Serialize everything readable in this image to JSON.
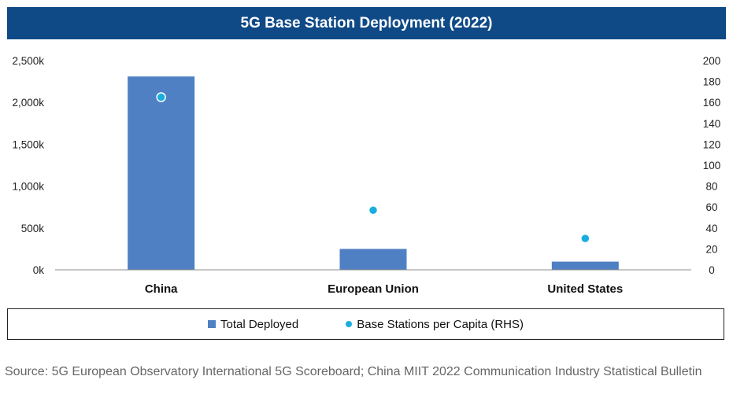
{
  "colors": {
    "title_bg": "#0f4a87",
    "bar": "#4f80c4",
    "dot": "#1aaee0"
  },
  "chart_data": {
    "type": "bar",
    "title": "5G Base Station Deployment (2022)",
    "categories": [
      "China",
      "European Union",
      "United States"
    ],
    "series": [
      {
        "name": "Total Deployed",
        "type": "bar",
        "axis": "left",
        "values": [
          2310,
          250,
          98
        ]
      },
      {
        "name": "Base Stations per Capita (RHS)",
        "type": "scatter",
        "axis": "right",
        "values": [
          165,
          57,
          30
        ]
      }
    ],
    "left_axis": {
      "ylim": [
        0,
        2500
      ],
      "ticks": [
        0,
        500,
        1000,
        1500,
        2000,
        2500
      ],
      "tick_labels": [
        "0k",
        "500k",
        "1,000k",
        "1,500k",
        "2,000k",
        "2,500k"
      ]
    },
    "right_axis": {
      "ylim": [
        0,
        200
      ],
      "ticks": [
        0,
        20,
        40,
        60,
        80,
        100,
        120,
        140,
        160,
        180,
        200
      ],
      "tick_labels": [
        "0",
        "20",
        "40",
        "60",
        "80",
        "100",
        "120",
        "140",
        "160",
        "180",
        "200"
      ]
    },
    "legend": {
      "position": "bottom",
      "labels": [
        "Total Deployed",
        "Base Stations per Capita (RHS)"
      ]
    }
  },
  "source": "Source: 5G European Observatory International 5G Scoreboard; China MIIT 2022 Communication Industry Statistical Bulletin"
}
